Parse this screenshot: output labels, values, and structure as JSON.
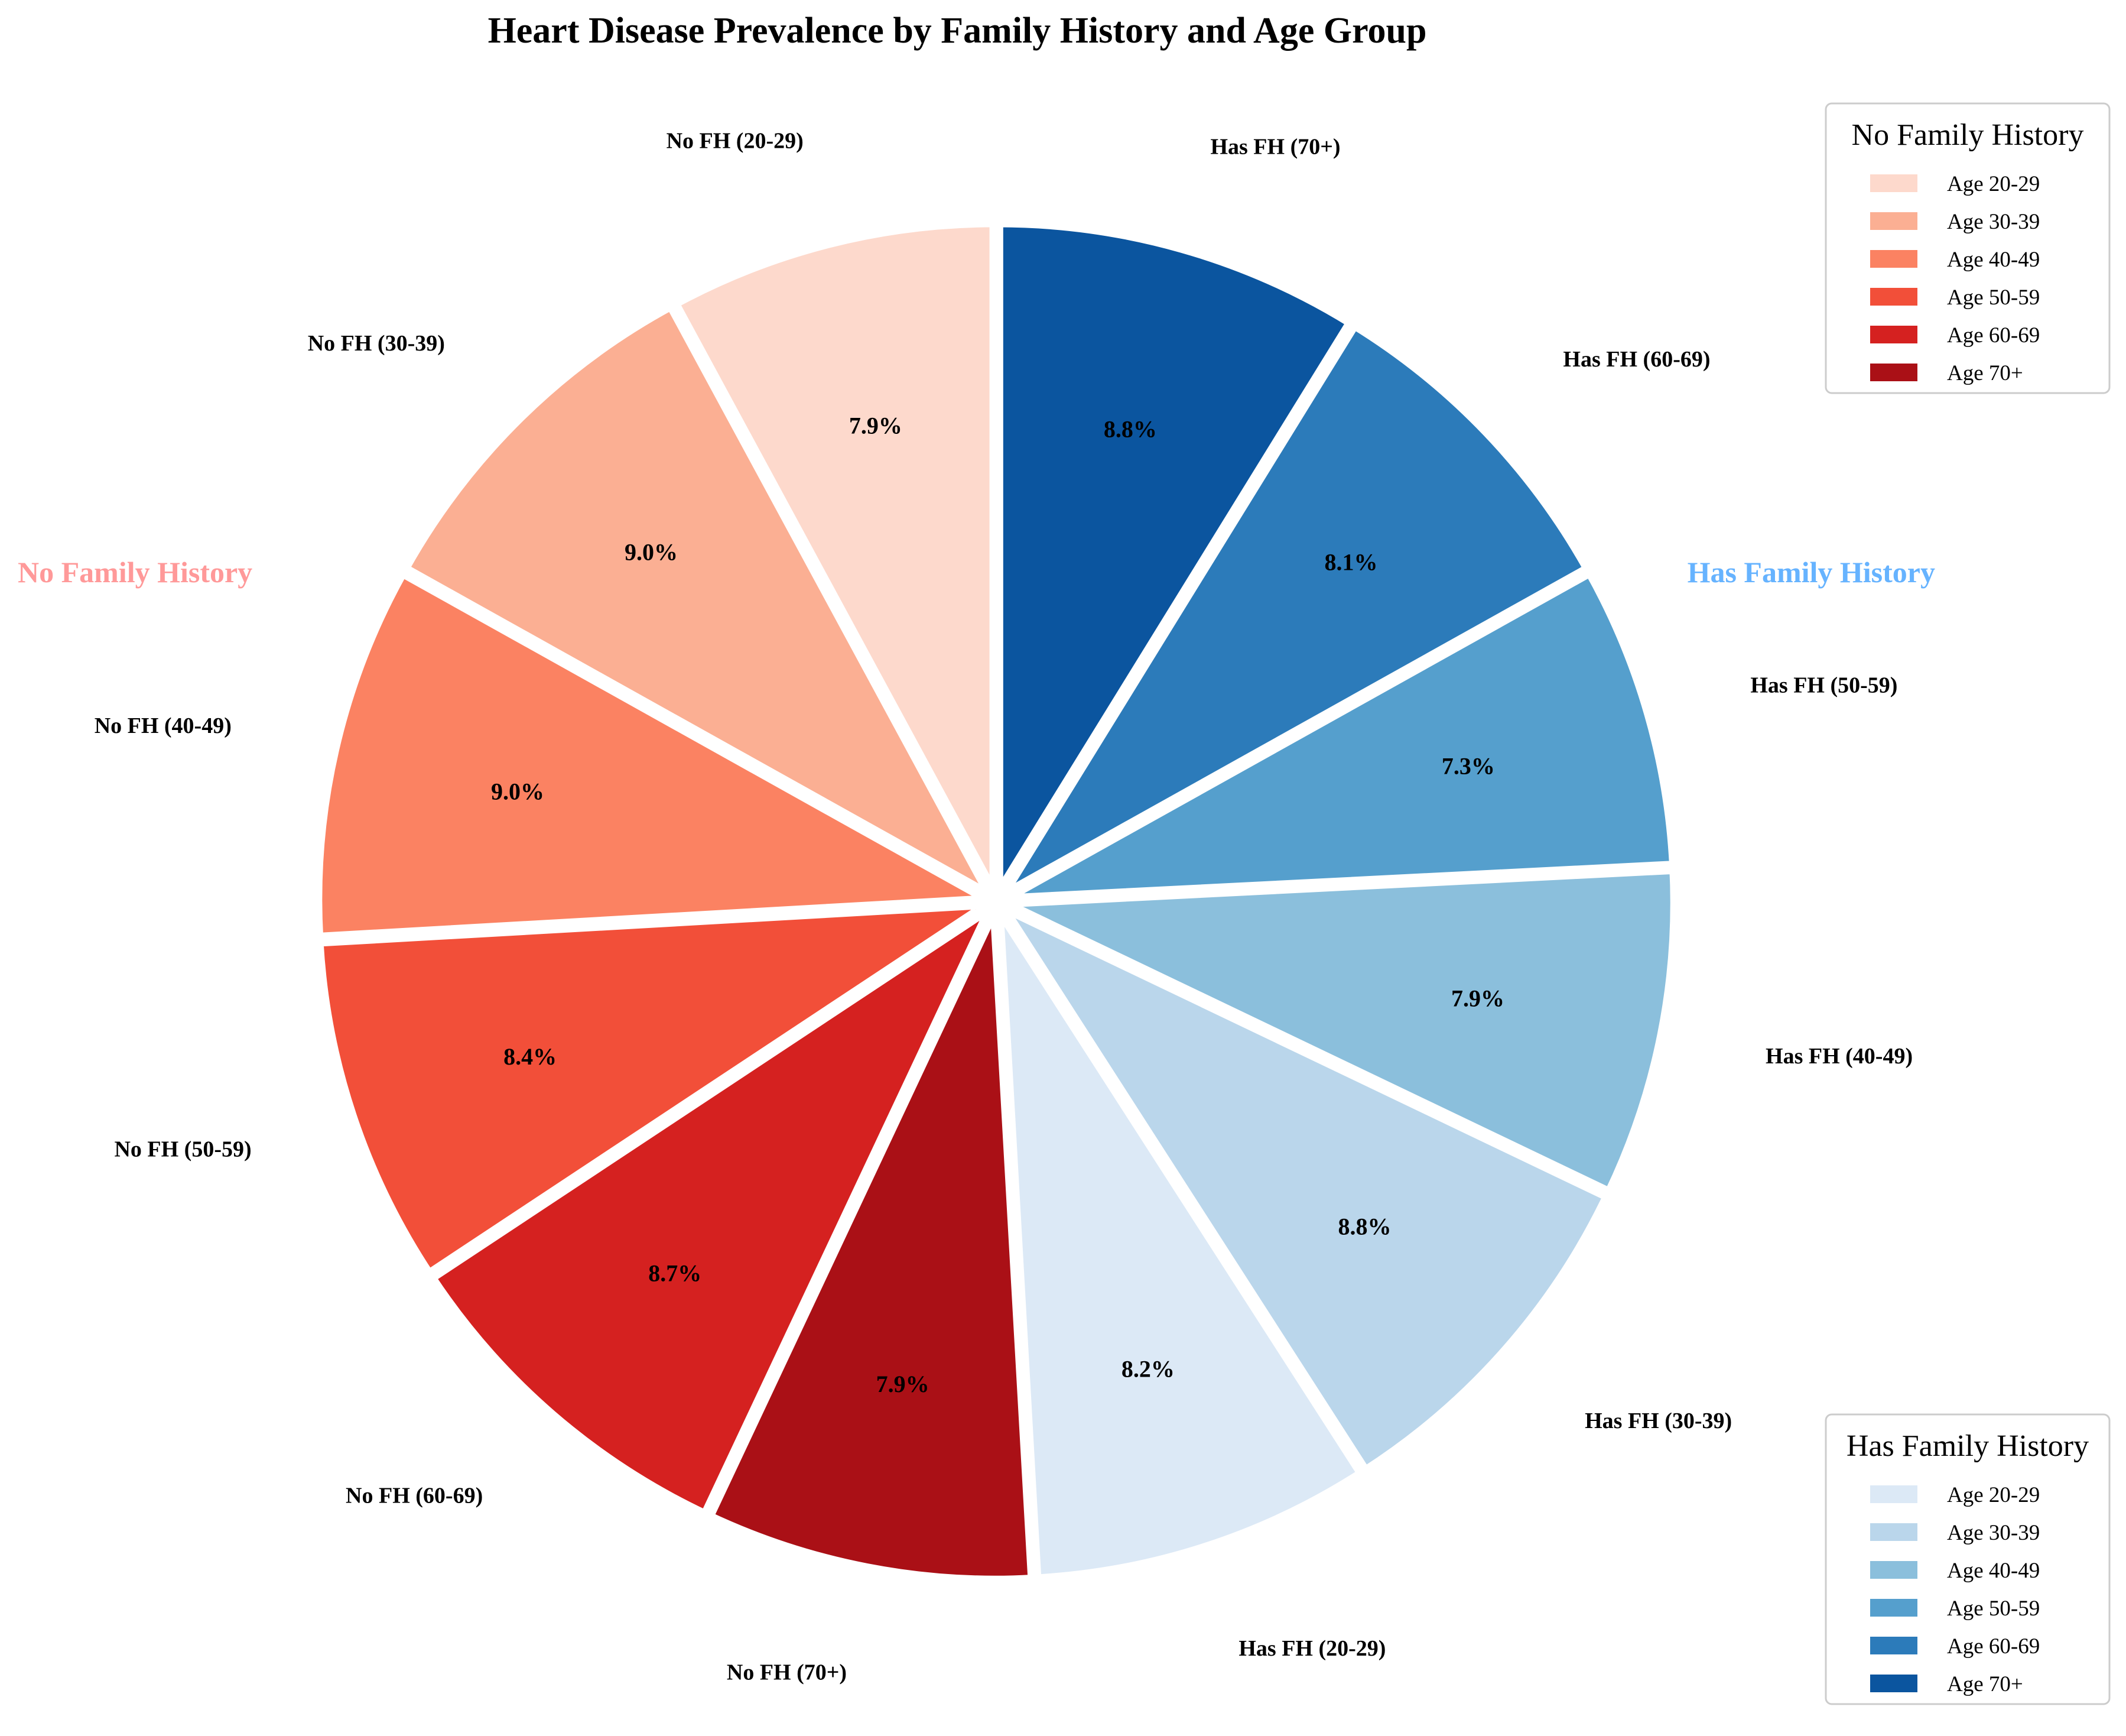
{
  "chart_data": {
    "type": "pie",
    "title": "Heart Disease Prevalence by Family History and Age Group",
    "slices": [
      {
        "label": "No FH (20-29)",
        "value": 7.9,
        "pct_label": "7.9%",
        "color": "#fdd9cc"
      },
      {
        "label": "No FH (30-39)",
        "value": 9.0,
        "pct_label": "9.0%",
        "color": "#fbaf93"
      },
      {
        "label": "No FH (40-49)",
        "value": 9.0,
        "pct_label": "9.0%",
        "color": "#fb8262"
      },
      {
        "label": "No FH (50-59)",
        "value": 8.4,
        "pct_label": "8.4%",
        "color": "#f24f39"
      },
      {
        "label": "No FH (60-69)",
        "value": 8.7,
        "pct_label": "8.7%",
        "color": "#d52120"
      },
      {
        "label": "No FH (70+)",
        "value": 7.9,
        "pct_label": "7.9%",
        "color": "#aa1016"
      },
      {
        "label": "Has FH (20-29)",
        "value": 8.2,
        "pct_label": "8.2%",
        "color": "#dce9f6"
      },
      {
        "label": "Has FH (30-39)",
        "value": 8.8,
        "pct_label": "8.8%",
        "color": "#bad6eb"
      },
      {
        "label": "Has FH (40-49)",
        "value": 7.9,
        "pct_label": "7.9%",
        "color": "#8bbfdc"
      },
      {
        "label": "Has FH (50-59)",
        "value": 7.3,
        "pct_label": "7.3%",
        "color": "#559fcd"
      },
      {
        "label": "Has FH (60-69)",
        "value": 8.1,
        "pct_label": "8.1%",
        "color": "#2c7bba"
      },
      {
        "label": "Has FH (70+)",
        "value": 8.8,
        "pct_label": "8.8%",
        "color": "#0b559f"
      }
    ],
    "start_angle": "top",
    "direction": "counterclockwise",
    "group_labels": [
      {
        "text": "No Family History",
        "color": "#ff9999"
      },
      {
        "text": "Has Family History",
        "color": "#66b3ff"
      }
    ],
    "legends": [
      {
        "title": "No Family History",
        "placement": "top-right",
        "entries": [
          {
            "label": "Age 20-29",
            "color": "#fdd9cc"
          },
          {
            "label": "Age 30-39",
            "color": "#fbaf93"
          },
          {
            "label": "Age 40-49",
            "color": "#fb8262"
          },
          {
            "label": "Age 50-59",
            "color": "#f24f39"
          },
          {
            "label": "Age 60-69",
            "color": "#d52120"
          },
          {
            "label": "Age 70+",
            "color": "#aa1016"
          }
        ]
      },
      {
        "title": "Has Family History",
        "placement": "bottom-right",
        "entries": [
          {
            "label": "Age 20-29",
            "color": "#dce9f6"
          },
          {
            "label": "Age 30-39",
            "color": "#bad6eb"
          },
          {
            "label": "Age 40-49",
            "color": "#8bbfdc"
          },
          {
            "label": "Age 50-59",
            "color": "#559fcd"
          },
          {
            "label": "Age 60-69",
            "color": "#2c7bba"
          },
          {
            "label": "Age 70+",
            "color": "#0b559f"
          }
        ]
      }
    ]
  }
}
